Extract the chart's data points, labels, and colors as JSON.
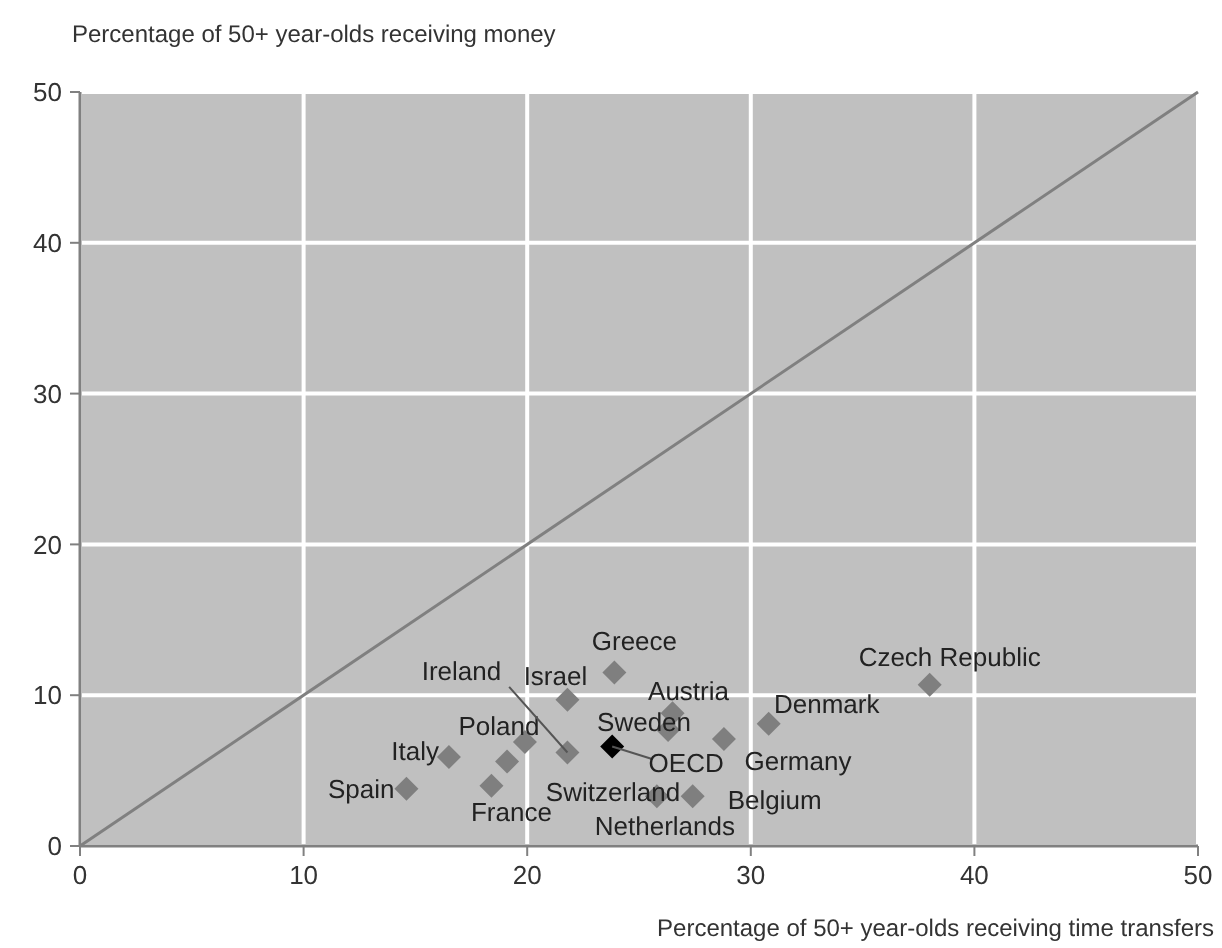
{
  "chart_data": {
    "type": "scatter",
    "ylabel": "Percentage of 50+ year-olds receiving money",
    "xlabel": "Percentage of 50+ year-olds receiving time transfers",
    "xlim": [
      0,
      50
    ],
    "ylim": [
      0,
      50
    ],
    "xticks": [
      0,
      10,
      20,
      30,
      40,
      50
    ],
    "yticks": [
      0,
      10,
      20,
      30,
      40,
      50
    ],
    "grid": true,
    "series": [
      {
        "marker": "diamond",
        "x": [
          14.6,
          16.5,
          18.4,
          19.1,
          19.9,
          21.8,
          21.8,
          23.9,
          23.8,
          26.5,
          26.3,
          28.8,
          30.8,
          25.8,
          27.4,
          38.0
        ],
        "values": [
          3.8,
          5.9,
          4.0,
          5.6,
          6.9,
          9.7,
          6.2,
          11.5,
          6.6,
          8.8,
          7.7,
          7.1,
          8.1,
          3.3,
          3.3,
          10.7
        ],
        "colors": [
          "#7f7f7f",
          "#7f7f7f",
          "#7f7f7f",
          "#7f7f7f",
          "#7f7f7f",
          "#7f7f7f",
          "#7f7f7f",
          "#7f7f7f",
          "#000000",
          "#7f7f7f",
          "#7f7f7f",
          "#7f7f7f",
          "#7f7f7f",
          "#7f7f7f",
          "#7f7f7f",
          "#7f7f7f"
        ]
      },
      {
        "type": "line",
        "color": "#808080",
        "x": [
          0,
          50
        ],
        "values": [
          0,
          50
        ]
      }
    ],
    "annotations": [
      {
        "text": "Spain",
        "x": 14.6,
        "y": 3.8
      },
      {
        "text": "Italy",
        "x": 16.5,
        "y": 5.9
      },
      {
        "text": "France",
        "x": 18.4,
        "y": 4.0
      },
      {
        "text": "Switzerland",
        "x": 19.1,
        "y": 5.6
      },
      {
        "text": "Poland",
        "x": 19.9,
        "y": 6.9
      },
      {
        "text": "Israel",
        "x": 21.8,
        "y": 9.7
      },
      {
        "text": "Ireland",
        "x": 21.8,
        "y": 6.2
      },
      {
        "text": "Greece",
        "x": 23.9,
        "y": 11.5
      },
      {
        "text": "OECD",
        "x": 23.8,
        "y": 6.6
      },
      {
        "text": "Austria",
        "x": 26.5,
        "y": 8.8
      },
      {
        "text": "Sweden",
        "x": 26.3,
        "y": 7.7
      },
      {
        "text": "Germany",
        "x": 28.8,
        "y": 7.1
      },
      {
        "text": "Denmark",
        "x": 30.8,
        "y": 8.1
      },
      {
        "text": "Netherlands",
        "x": 25.8,
        "y": 3.3
      },
      {
        "text": "Belgium",
        "x": 27.4,
        "y": 3.3
      },
      {
        "text": "Czech Republic",
        "x": 38.0,
        "y": 10.7
      }
    ]
  }
}
